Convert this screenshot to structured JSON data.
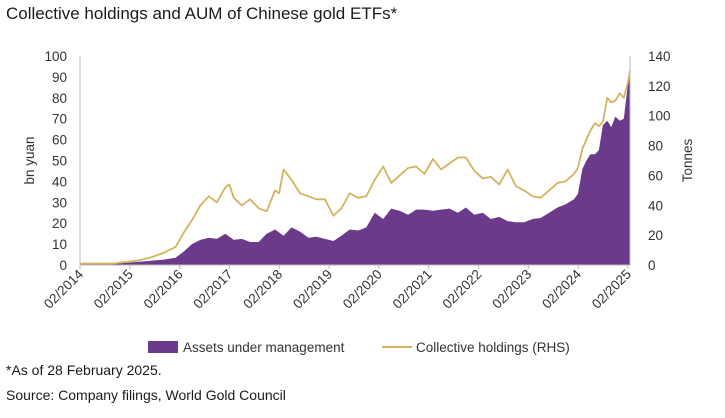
{
  "title": "Collective holdings and AUM of Chinese gold ETFs*",
  "footnote": "*As of 28 February 2025.",
  "source": "Source: Company filings, World Gold Council",
  "chart_data": {
    "type": "area",
    "title": "Collective holdings and AUM of Chinese gold ETFs*",
    "x_ticks": [
      "02/2014",
      "02/2015",
      "02/2016",
      "02/2017",
      "02/2018",
      "02/2019",
      "02/2020",
      "02/2021",
      "02/2022",
      "02/2023",
      "02/2024",
      "02/2025"
    ],
    "x_range": [
      2014.083,
      2025.125
    ],
    "y_left": {
      "label": "bn yuan",
      "range": [
        0,
        100
      ],
      "ticks": [
        0,
        10,
        20,
        30,
        40,
        50,
        60,
        70,
        80,
        90,
        100
      ]
    },
    "y_right": {
      "label": "Tonnes",
      "range": [
        0,
        140
      ],
      "ticks": [
        0,
        20,
        40,
        60,
        80,
        100,
        120,
        140
      ]
    },
    "grid": false,
    "legend_position": "bottom",
    "colors": {
      "aum": "#6b3a8a",
      "holdings": "#d4b260"
    },
    "series": [
      {
        "name": "Assets under management",
        "axis": "left",
        "style": "area",
        "x": [
          2014.08,
          2014.5,
          2014.75,
          2015.0,
          2015.25,
          2015.5,
          2015.75,
          2016.0,
          2016.17,
          2016.33,
          2016.5,
          2016.67,
          2016.83,
          2017.0,
          2017.17,
          2017.33,
          2017.5,
          2017.67,
          2017.83,
          2018.0,
          2018.17,
          2018.33,
          2018.5,
          2018.67,
          2018.83,
          2019.0,
          2019.17,
          2019.33,
          2019.5,
          2019.67,
          2019.83,
          2020.0,
          2020.17,
          2020.33,
          2020.5,
          2020.67,
          2020.83,
          2021.0,
          2021.17,
          2021.33,
          2021.5,
          2021.67,
          2021.83,
          2022.0,
          2022.17,
          2022.33,
          2022.5,
          2022.67,
          2022.83,
          2023.0,
          2023.17,
          2023.33,
          2023.5,
          2023.67,
          2023.83,
          2024.0,
          2024.08,
          2024.17,
          2024.25,
          2024.33,
          2024.42,
          2024.5,
          2024.58,
          2024.67,
          2024.75,
          2024.83,
          2024.92,
          2025.0,
          2025.08,
          2025.125
        ],
        "values": [
          0.5,
          0.7,
          0.8,
          1.0,
          1.5,
          2.0,
          2.5,
          3.5,
          6.5,
          10.0,
          12.0,
          13.0,
          12.5,
          15.0,
          12.0,
          12.5,
          11.0,
          11.0,
          15.0,
          17.0,
          14.0,
          18.0,
          16.0,
          13.0,
          13.5,
          12.5,
          11.5,
          14.0,
          17.0,
          16.5,
          18.0,
          25.0,
          22.0,
          27.0,
          26.0,
          24.0,
          26.5,
          26.5,
          26.0,
          26.5,
          27.0,
          25.0,
          27.5,
          24.0,
          25.0,
          22.0,
          23.0,
          21.0,
          20.5,
          20.5,
          22.0,
          22.5,
          25.0,
          27.5,
          29.0,
          31.5,
          34.0,
          46.0,
          50.0,
          53.0,
          53.0,
          55.0,
          67.0,
          69.0,
          66.0,
          71.0,
          69.0,
          70.0,
          86.0,
          92.0
        ]
      },
      {
        "name": "Collective holdings (RHS)",
        "axis": "right",
        "style": "line",
        "x": [
          2014.08,
          2014.5,
          2014.75,
          2015.0,
          2015.25,
          2015.5,
          2015.75,
          2016.0,
          2016.17,
          2016.33,
          2016.5,
          2016.67,
          2016.83,
          2017.0,
          2017.08,
          2017.17,
          2017.33,
          2017.5,
          2017.67,
          2017.83,
          2018.0,
          2018.08,
          2018.17,
          2018.33,
          2018.5,
          2018.67,
          2018.83,
          2019.0,
          2019.17,
          2019.33,
          2019.5,
          2019.67,
          2019.83,
          2020.0,
          2020.17,
          2020.33,
          2020.5,
          2020.67,
          2020.83,
          2021.0,
          2021.17,
          2021.33,
          2021.5,
          2021.67,
          2021.83,
          2022.0,
          2022.17,
          2022.33,
          2022.5,
          2022.67,
          2022.83,
          2023.0,
          2023.17,
          2023.33,
          2023.5,
          2023.67,
          2023.83,
          2024.0,
          2024.08,
          2024.17,
          2024.25,
          2024.33,
          2024.42,
          2024.5,
          2024.58,
          2024.67,
          2024.75,
          2024.83,
          2024.92,
          2025.0,
          2025.08,
          2025.125
        ],
        "values": [
          1,
          1,
          1,
          2,
          3,
          5,
          8,
          12,
          22,
          30,
          40,
          46,
          42,
          52,
          54,
          45,
          40,
          44,
          38,
          36,
          50,
          48,
          64,
          57,
          48,
          46,
          44,
          44,
          33,
          38,
          48,
          45,
          46,
          57,
          66,
          55,
          60,
          65,
          66,
          61,
          71,
          64,
          68,
          72,
          72,
          63,
          58,
          59,
          54,
          64,
          53,
          50,
          46,
          45,
          50,
          55,
          56,
          61,
          65,
          78,
          84,
          90,
          95,
          93,
          96,
          112,
          109,
          110,
          115,
          112,
          122,
          130
        ]
      }
    ]
  }
}
